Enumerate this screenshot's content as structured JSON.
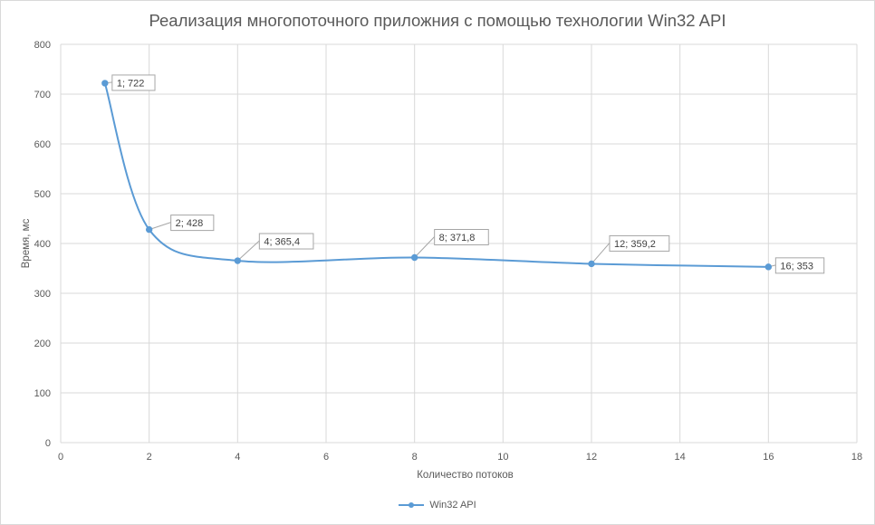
{
  "colors": {
    "series": "#5b9bd5",
    "grid": "#d9d9d9",
    "label_border": "#a6a6a6"
  },
  "chart_data": {
    "type": "line",
    "title": "Реализация многопоточного приложния с помощью технологии Win32 API",
    "xlabel": "Количество потоков",
    "ylabel": "Время, мс",
    "xlim": [
      0,
      18
    ],
    "ylim": [
      0,
      800
    ],
    "x_ticks": [
      0,
      2,
      4,
      6,
      8,
      10,
      12,
      14,
      16,
      18
    ],
    "y_ticks": [
      0,
      100,
      200,
      300,
      400,
      500,
      600,
      700,
      800
    ],
    "grid": true,
    "smooth": true,
    "legend_position": "bottom",
    "series": [
      {
        "name": "Win32 API",
        "x": [
          1,
          2,
          4,
          8,
          12,
          16
        ],
        "values": [
          722,
          428,
          365.4,
          371.8,
          359.2,
          353
        ],
        "labels": [
          "1; 722",
          "2; 428",
          "4; 365,4",
          "8; 371,8",
          "12; 359,2",
          "16; 353"
        ]
      }
    ]
  }
}
